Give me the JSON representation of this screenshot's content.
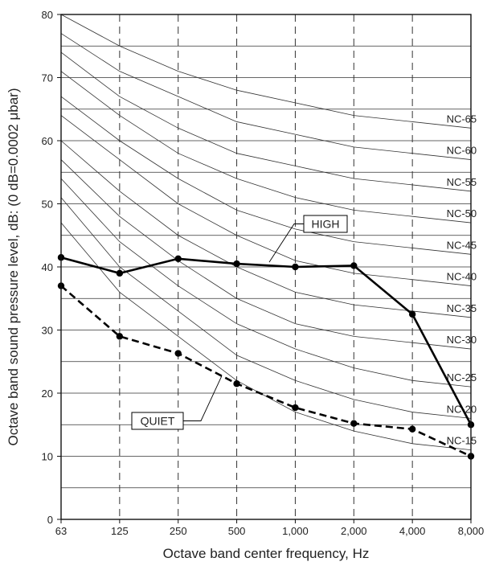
{
  "chart_data": {
    "type": "line",
    "xlabel": "Octave band center frequency, Hz",
    "ylabel": "Octave band sound pressure level, dB: (0 dB=0.0002 μbar)",
    "x_categories": [
      "63",
      "125",
      "250",
      "500",
      "1,000",
      "2,000",
      "4,000",
      "8,000"
    ],
    "ylim": [
      0,
      80
    ],
    "y_ticks": [
      0,
      10,
      20,
      30,
      40,
      50,
      60,
      70,
      80
    ],
    "grid": true,
    "nc_curves": [
      {
        "name": "NC-65",
        "values": [
          80,
          75,
          71,
          68,
          66,
          64,
          63,
          62
        ]
      },
      {
        "name": "NC-60",
        "values": [
          77,
          71,
          67,
          63,
          61,
          59,
          58,
          57
        ]
      },
      {
        "name": "NC-55",
        "values": [
          74,
          67,
          62,
          58,
          56,
          54,
          53,
          52
        ]
      },
      {
        "name": "NC-50",
        "values": [
          71,
          64,
          58,
          54,
          51,
          49,
          48,
          47
        ]
      },
      {
        "name": "NC-45",
        "values": [
          67,
          60,
          54,
          49,
          46,
          44,
          43,
          42
        ]
      },
      {
        "name": "NC-40",
        "values": [
          64,
          57,
          50,
          45,
          41,
          39,
          38,
          37
        ]
      },
      {
        "name": "NC-35",
        "values": [
          60,
          52,
          45,
          40,
          36,
          34,
          33,
          32
        ]
      },
      {
        "name": "NC-30",
        "values": [
          57,
          48,
          41,
          35,
          31,
          29,
          28,
          27
        ]
      },
      {
        "name": "NC-25",
        "values": [
          54,
          44,
          37,
          31,
          27,
          24,
          22,
          21
        ]
      },
      {
        "name": "NC-20",
        "values": [
          51,
          40,
          33,
          26,
          22,
          19,
          17,
          16
        ]
      },
      {
        "name": "NC-15",
        "values": [
          47,
          36,
          29,
          22,
          17,
          14,
          12,
          11
        ]
      }
    ],
    "series": [
      {
        "name": "HIGH",
        "style": "solid",
        "values": [
          41.5,
          39,
          41.3,
          40.5,
          40,
          40.2,
          32.5,
          15
        ]
      },
      {
        "name": "QUIET",
        "style": "dashed",
        "values": [
          37,
          29,
          26.3,
          21.5,
          17.7,
          15.2,
          14.3,
          10
        ]
      }
    ]
  }
}
